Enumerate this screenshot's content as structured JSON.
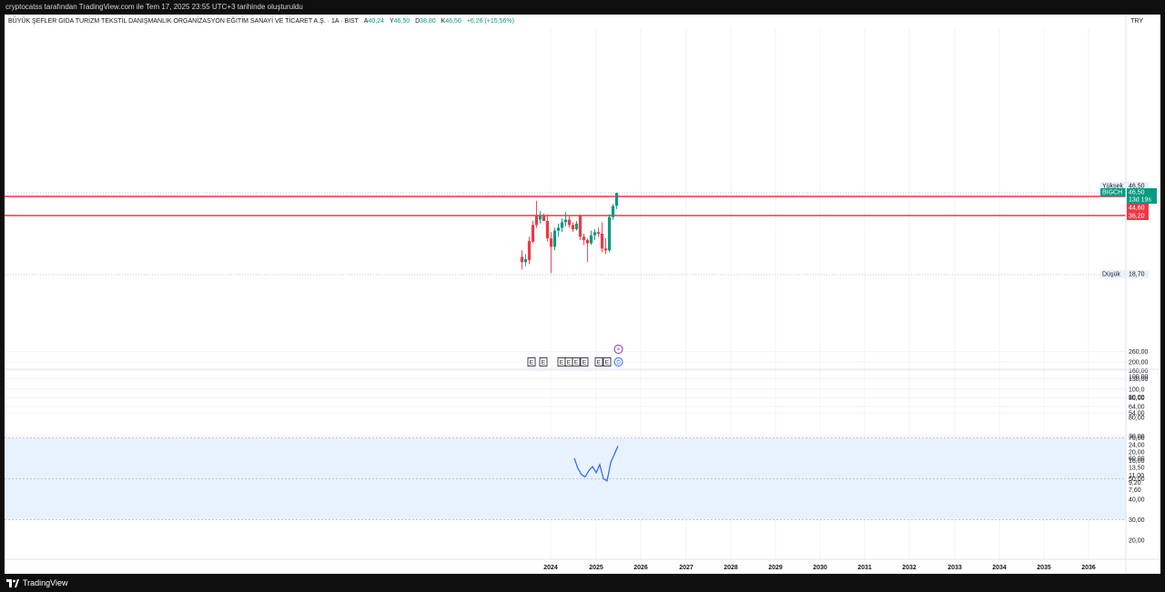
{
  "header": {
    "attribution": "cryptocatss tarafından TradingView.com ile Tem 17, 2025 23:55 UTC+3 tarihinde oluşturuldu"
  },
  "legend": {
    "title": "BÜYÜK ŞEFLER GIDA TURİZM TEKSTİL DANIŞMANLIK ORGANİZASYON EĞİTİM SANAYİ VE TİCARET A.Ş. · 1A · BIST",
    "open_label": "A",
    "open": "40,24",
    "high_label": "Y",
    "high": "46,50",
    "low_label": "D",
    "low": "38,80",
    "close_label": "K",
    "close": "46,50",
    "change": "+6,26 (+15,56%)"
  },
  "currency": "TRY",
  "price_axis": {
    "ticks": [
      "260,00",
      "200,00",
      "160,00",
      "130,00",
      "100,0",
      "80,00",
      "64,00",
      "54,00",
      "30,00",
      "24,00",
      "20,00",
      "16,00",
      "13,50",
      "11,00",
      "9,20",
      "7,60"
    ]
  },
  "markers": {
    "high_label": "Yüksek",
    "high_value": "46,50",
    "symbol": "BIGCH",
    "last_price": "46,50",
    "countdown": "13d 19s",
    "level1": "44,60",
    "level2": "36,20",
    "low_label": "Düşük",
    "low_value": "18,70"
  },
  "colors": {
    "up": "#089981",
    "down": "#f23645",
    "level": "#f23645",
    "rsi_line": "#2962ff",
    "rsi_band": "#e8f2fd"
  },
  "events": {
    "earnings": [
      "E",
      "E",
      "E",
      "E",
      "E",
      "E",
      "E",
      "E"
    ],
    "dividend": "D",
    "split_icon": "lightning-icon"
  },
  "rsi_axis": {
    "ticks": [
      "100,00",
      "90,00",
      "80,00",
      "70,00",
      "60,00",
      "50,00",
      "40,00",
      "30,00",
      "20,00"
    ]
  },
  "time_axis": {
    "ticks": [
      "2024",
      "2025",
      "2026",
      "2027",
      "2028",
      "2029",
      "2030",
      "2031",
      "2032",
      "2033",
      "2034",
      "2035",
      "2036"
    ]
  },
  "chart_data": {
    "type": "candlestick",
    "timeframe": "1A",
    "candles": [
      {
        "o": 22.8,
        "h": 24.5,
        "l": 19.8,
        "c": 21.5
      },
      {
        "o": 21.5,
        "h": 23.5,
        "l": 20.5,
        "c": 22.2
      },
      {
        "o": 27.2,
        "h": 28.5,
        "l": 21.0,
        "c": 22.0
      },
      {
        "o": 32.5,
        "h": 34.0,
        "l": 26.5,
        "c": 27.0
      },
      {
        "o": 36.0,
        "h": 42.5,
        "l": 31.5,
        "c": 32.5
      },
      {
        "o": 34.5,
        "h": 38.0,
        "l": 33.0,
        "c": 36.0
      },
      {
        "o": 36.0,
        "h": 37.0,
        "l": 34.0,
        "c": 34.0
      },
      {
        "o": 34.0,
        "h": 36.5,
        "l": 27.0,
        "c": 28.0
      },
      {
        "o": 28.0,
        "h": 30.0,
        "l": 19.0,
        "c": 25.5
      },
      {
        "o": 25.5,
        "h": 31.5,
        "l": 24.5,
        "c": 30.5
      },
      {
        "o": 30.5,
        "h": 33.0,
        "l": 28.5,
        "c": 31.5
      },
      {
        "o": 31.5,
        "h": 35.0,
        "l": 30.0,
        "c": 33.5
      },
      {
        "o": 33.5,
        "h": 37.5,
        "l": 32.0,
        "c": 34.5
      },
      {
        "o": 34.5,
        "h": 36.0,
        "l": 31.5,
        "c": 32.5
      },
      {
        "o": 32.5,
        "h": 33.5,
        "l": 30.0,
        "c": 31.0
      },
      {
        "o": 31.0,
        "h": 34.0,
        "l": 30.5,
        "c": 33.0
      },
      {
        "o": 36.0,
        "h": 36.5,
        "l": 27.5,
        "c": 28.5
      },
      {
        "o": 28.5,
        "h": 29.5,
        "l": 26.0,
        "c": 27.5
      },
      {
        "o": 27.5,
        "h": 28.0,
        "l": 21.5,
        "c": 26.5
      },
      {
        "o": 26.5,
        "h": 30.5,
        "l": 26.0,
        "c": 29.0
      },
      {
        "o": 29.0,
        "h": 31.0,
        "l": 27.5,
        "c": 30.0
      },
      {
        "o": 30.0,
        "h": 31.5,
        "l": 28.5,
        "c": 29.5
      },
      {
        "o": 29.5,
        "h": 33.5,
        "l": 24.0,
        "c": 25.0
      },
      {
        "o": 25.0,
        "h": 28.0,
        "l": 23.5,
        "c": 24.5
      },
      {
        "o": 24.5,
        "h": 36.5,
        "l": 24.0,
        "c": 35.5
      },
      {
        "o": 35.5,
        "h": 41.0,
        "l": 34.5,
        "c": 40.2
      },
      {
        "o": 40.24,
        "h": 46.5,
        "l": 38.8,
        "c": 46.5
      }
    ],
    "levels": [
      44.6,
      36.2
    ],
    "rsi": [
      60,
      55,
      52,
      51,
      54,
      56,
      53,
      57,
      50,
      49,
      58,
      62,
      66
    ]
  }
}
